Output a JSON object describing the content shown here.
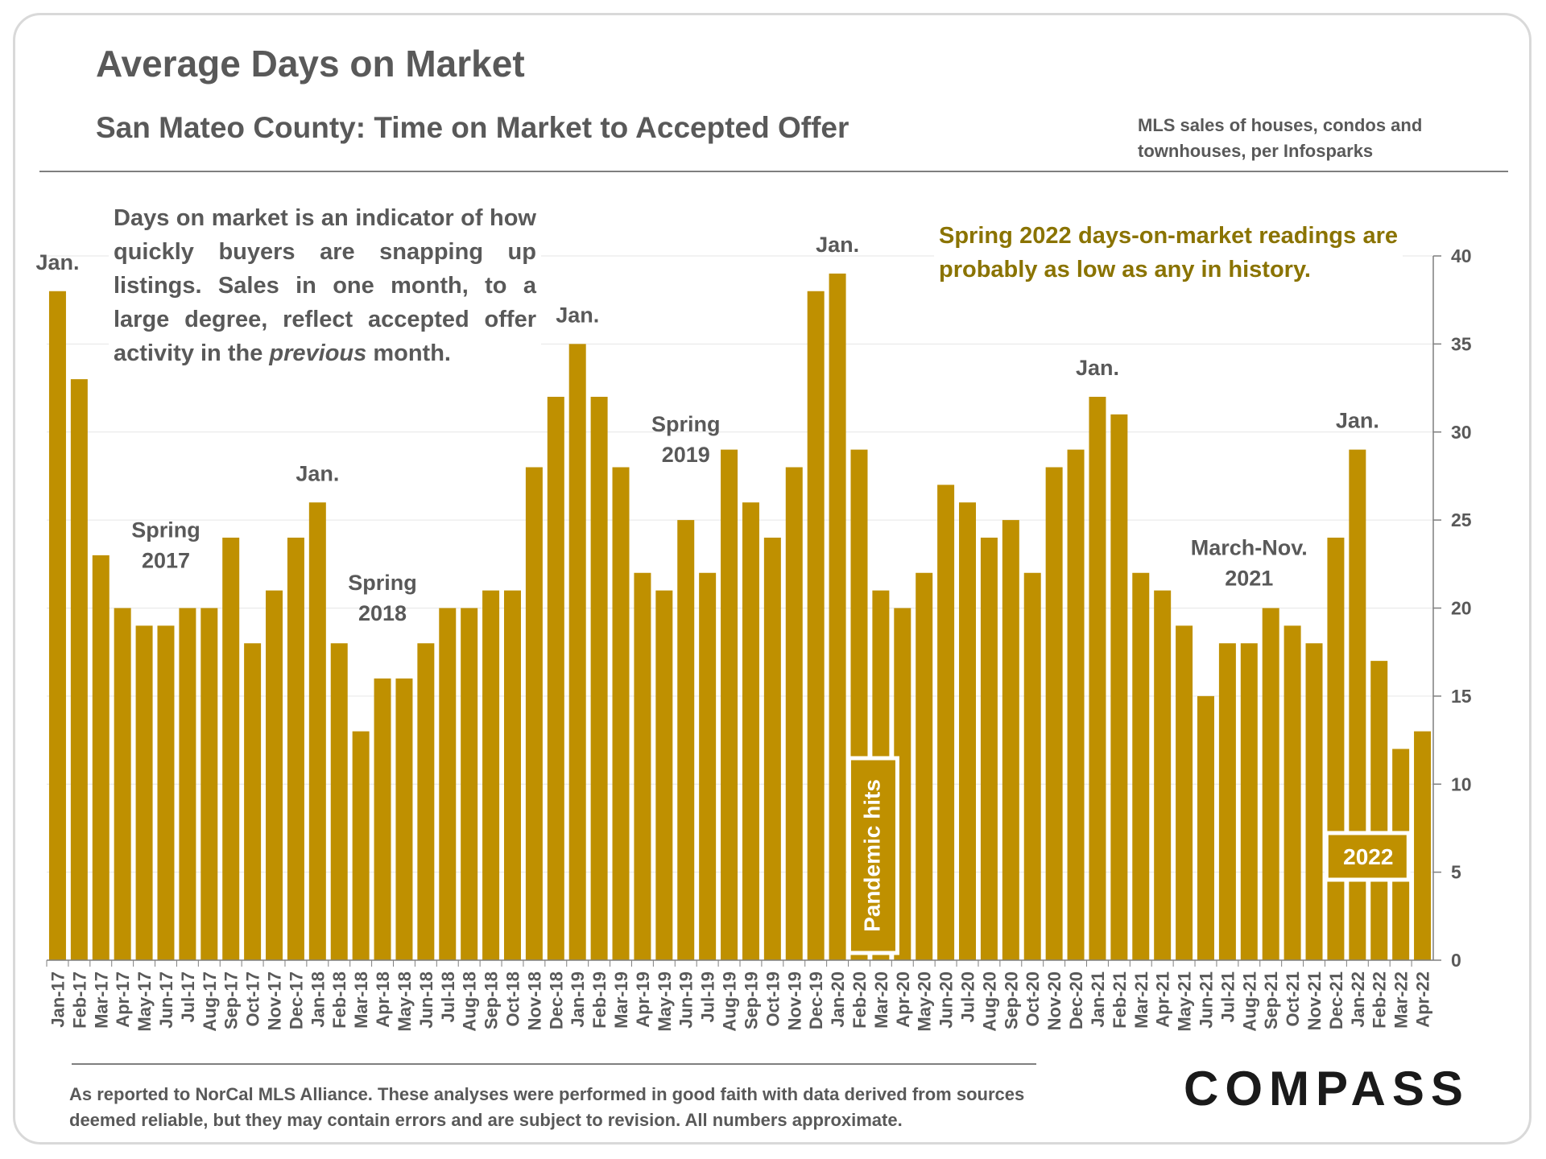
{
  "title": "Average Days on Market",
  "subtitle": "San Mateo County: Time on Market to Accepted Offer",
  "source_note": "MLS sales of houses, condos and townhouses, per Infosparks",
  "intro_text_before": "Days on market is an indicator of how quickly buyers are snapping up listings. Sales in one month, to a large degree, reflect accepted offer activity in the ",
  "intro_text_em": "previous",
  "intro_text_after": " month.",
  "spring_note": "Spring 2022 days-on-market readings are probably as low as any in history.",
  "footnote": "As reported to NorCal MLS Alliance. These analyses were performed in good faith with data derived from sources deemed reliable, but they may contain errors and are subject to revision. All numbers approximate.",
  "logo": "COMPASS",
  "colors": {
    "bar": "#bf9000",
    "highlight_text": "#8a7300",
    "text": "#595959",
    "grid": "#e6e6e6"
  },
  "chart_data": {
    "type": "bar",
    "title": "Average Days on Market",
    "ylim": [
      0,
      40
    ],
    "yticks": [
      0,
      5,
      10,
      15,
      20,
      25,
      30,
      35,
      40
    ],
    "y_axis_side": "right",
    "categories": [
      "Jan-17",
      "Feb-17",
      "Mar-17",
      "Apr-17",
      "May-17",
      "Jun-17",
      "Jul-17",
      "Aug-17",
      "Sep-17",
      "Oct-17",
      "Nov-17",
      "Dec-17",
      "Jan-18",
      "Feb-18",
      "Mar-18",
      "Apr-18",
      "May-18",
      "Jun-18",
      "Jul-18",
      "Aug-18",
      "Sep-18",
      "Oct-18",
      "Nov-18",
      "Dec-18",
      "Jan-19",
      "Feb-19",
      "Mar-19",
      "Apr-19",
      "May-19",
      "Jun-19",
      "Jul-19",
      "Aug-19",
      "Sep-19",
      "Oct-19",
      "Nov-19",
      "Dec-19",
      "Jan-20",
      "Feb-20",
      "Mar-20",
      "Apr-20",
      "May-20",
      "Jun-20",
      "Jul-20",
      "Aug-20",
      "Sep-20",
      "Oct-20",
      "Nov-20",
      "Dec-20",
      "Jan-21",
      "Feb-21",
      "Mar-21",
      "Apr-21",
      "May-21",
      "Jun-21",
      "Jul-21",
      "Aug-21",
      "Sep-21",
      "Oct-21",
      "Nov-21",
      "Dec-21",
      "Jan-22",
      "Feb-22",
      "Mar-22",
      "Apr-22"
    ],
    "values": [
      38,
      33,
      23,
      20,
      19,
      19,
      20,
      20,
      24,
      18,
      21,
      24,
      26,
      18,
      13,
      16,
      16,
      18,
      20,
      20,
      21,
      21,
      28,
      32,
      35,
      32,
      28,
      22,
      21,
      25,
      22,
      29,
      26,
      24,
      28,
      38,
      39,
      29,
      21,
      20,
      22,
      27,
      26,
      24,
      25,
      22,
      28,
      29,
      32,
      31,
      22,
      21,
      19,
      15,
      18,
      18,
      20,
      19,
      18,
      24,
      29,
      17,
      12,
      13
    ],
    "annotations": [
      {
        "text": "Jan.",
        "category": "Jan-17"
      },
      {
        "text": "Spring",
        "text2": "2017",
        "category": "Jun-17"
      },
      {
        "text": "Jan.",
        "category": "Jan-18"
      },
      {
        "text": "Spring",
        "text2": "2018",
        "category": "Apr-18"
      },
      {
        "text": "Jan.",
        "category": "Jan-19"
      },
      {
        "text": "Spring",
        "text2": "2019",
        "category": "Jun-19"
      },
      {
        "text": "Jan.",
        "category": "Jan-20"
      },
      {
        "text": "Jan.",
        "category": "Jan-21"
      },
      {
        "text": "March-Nov.",
        "text2": "2021",
        "category": "Aug-21"
      },
      {
        "text": "Jan.",
        "category": "Jan-22"
      }
    ],
    "pandemic_label": "Pandemic hits",
    "year_label": "2022"
  }
}
